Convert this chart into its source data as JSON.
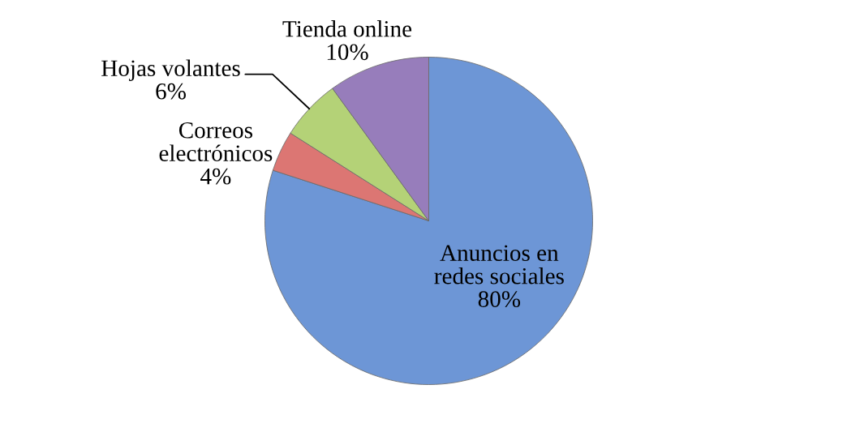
{
  "chart_data": {
    "type": "pie",
    "categories": [
      "Anuncios en\nredes sociales",
      "Correos\nelectrónicos",
      "Hojas volantes",
      "Tienda online"
    ],
    "values": [
      80,
      4,
      6,
      10
    ],
    "value_labels": [
      "80%",
      "4%",
      "6%",
      "10%"
    ],
    "colors": [
      "#6d96d6",
      "#dc7673",
      "#b4d277",
      "#977dbb"
    ]
  }
}
